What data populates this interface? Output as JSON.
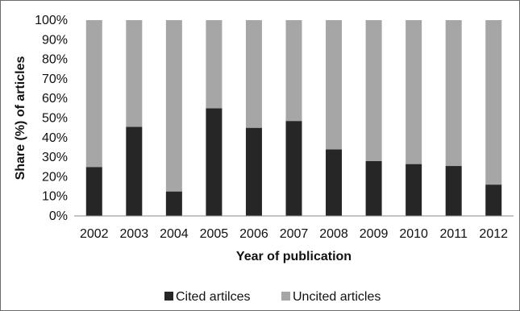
{
  "chart_data": {
    "type": "bar",
    "stacked": true,
    "categories": [
      "2002",
      "2003",
      "2004",
      "2005",
      "2006",
      "2007",
      "2008",
      "2009",
      "2010",
      "2011",
      "2012"
    ],
    "series": [
      {
        "name": "Cited artilces",
        "values": [
          25,
          45.5,
          12.5,
          55,
          45,
          48.5,
          34,
          28,
          26.5,
          25.5,
          16
        ],
        "color": "#262626"
      },
      {
        "name": "Uncited articles",
        "values": [
          75,
          54.5,
          87.5,
          45,
          55,
          51.5,
          66,
          72,
          73.5,
          74.5,
          84
        ],
        "color": "#a6a6a6"
      }
    ],
    "xlabel": "Year of publication",
    "ylabel": "Share (%) of articles",
    "ylim": [
      0,
      100
    ],
    "yticks": [
      "0%",
      "10%",
      "20%",
      "30%",
      "40%",
      "50%",
      "60%",
      "70%",
      "80%",
      "90%",
      "100%"
    ],
    "grid": false,
    "legend_position": "bottom"
  }
}
